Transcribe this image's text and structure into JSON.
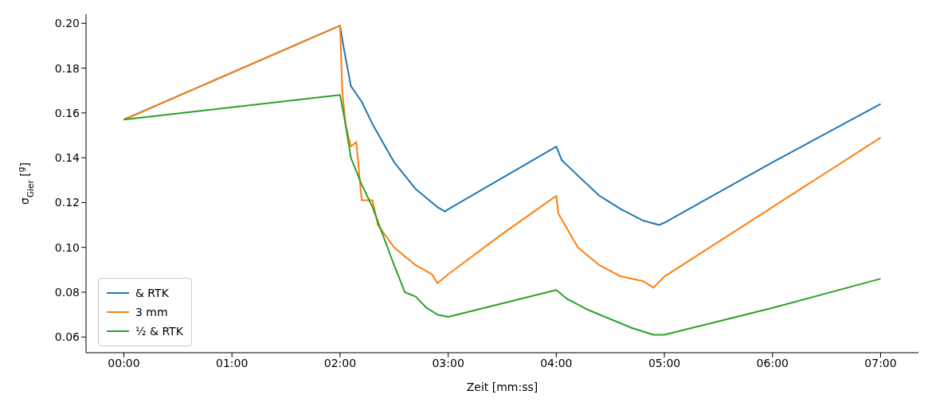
{
  "chart_data": {
    "type": "line",
    "xlabel": "Zeit [mm:ss]",
    "ylabel": "σ$_{Gier}$ [$^{g}$]",
    "xlim": [
      -0.35,
      7.35
    ],
    "ylim": [
      0.053,
      0.204
    ],
    "xticks": [
      {
        "value": 0,
        "label": "00:00"
      },
      {
        "value": 1,
        "label": "01:00"
      },
      {
        "value": 2,
        "label": "02:00"
      },
      {
        "value": 3,
        "label": "03:00"
      },
      {
        "value": 4,
        "label": "04:00"
      },
      {
        "value": 5,
        "label": "05:00"
      },
      {
        "value": 6,
        "label": "06:00"
      },
      {
        "value": 7,
        "label": "07:00"
      }
    ],
    "yticks": [
      0.06,
      0.08,
      {
        "value": 0.1,
        "label": "0.10"
      },
      0.12,
      0.14,
      0.16,
      0.18,
      {
        "value": 0.2,
        "label": "0.20"
      }
    ],
    "grid": false,
    "legend": "bottom left",
    "marker": "none",
    "line_style": "solid",
    "series": [
      {
        "name": "& RTK",
        "color": "#1f77b4",
        "x": [
          0,
          2.0,
          2.03,
          2.1,
          2.2,
          2.3,
          2.5,
          2.7,
          2.9,
          2.97,
          3.0,
          4.0,
          4.05,
          4.2,
          4.4,
          4.6,
          4.8,
          4.95,
          5.0,
          6.0,
          7.0
        ],
        "values": [
          0.157,
          0.199,
          0.19,
          0.172,
          0.165,
          0.155,
          0.138,
          0.126,
          0.118,
          0.116,
          0.117,
          0.145,
          0.139,
          0.132,
          0.123,
          0.117,
          0.112,
          0.11,
          0.111,
          0.138,
          0.164
        ]
      },
      {
        "name": "3 mm",
        "color": "#ff7f0e",
        "x": [
          0,
          2.0,
          2.02,
          2.05,
          2.1,
          2.15,
          2.2,
          2.3,
          2.35,
          2.5,
          2.7,
          2.85,
          2.9,
          3.0,
          3.5,
          4.0,
          4.02,
          4.2,
          4.4,
          4.6,
          4.8,
          4.9,
          5.0,
          6.0,
          7.0
        ],
        "values": [
          0.157,
          0.199,
          0.17,
          0.155,
          0.145,
          0.147,
          0.121,
          0.121,
          0.11,
          0.1,
          0.092,
          0.088,
          0.084,
          0.088,
          0.106,
          0.123,
          0.115,
          0.1,
          0.092,
          0.087,
          0.085,
          0.082,
          0.087,
          0.118,
          0.149
        ]
      },
      {
        "name": "½ & RTK",
        "color": "#2ca02c",
        "x": [
          0,
          2.0,
          2.05,
          2.1,
          2.2,
          2.3,
          2.4,
          2.5,
          2.6,
          2.7,
          2.8,
          2.9,
          3.0,
          4.0,
          4.1,
          4.3,
          4.5,
          4.7,
          4.9,
          5.0,
          6.0,
          7.0
        ],
        "values": [
          0.157,
          0.168,
          0.155,
          0.14,
          0.128,
          0.118,
          0.105,
          0.092,
          0.08,
          0.078,
          0.073,
          0.07,
          0.069,
          0.081,
          0.077,
          0.072,
          0.068,
          0.064,
          0.061,
          0.061,
          0.073,
          0.086
        ]
      }
    ]
  }
}
